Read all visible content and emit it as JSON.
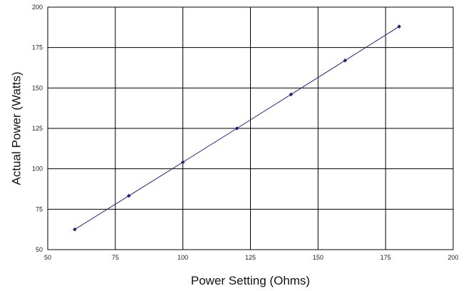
{
  "chart_data": {
    "type": "line",
    "title": "",
    "xlabel": "Power Setting (Ohms)",
    "ylabel": "Actual Power (Watts)",
    "xlim": [
      50,
      200
    ],
    "ylim": [
      50,
      200
    ],
    "x_ticks": [
      50,
      75,
      100,
      125,
      150,
      175,
      200
    ],
    "y_ticks": [
      50,
      75,
      100,
      125,
      150,
      175,
      200
    ],
    "grid": true,
    "legend": "none",
    "series": [
      {
        "color": "#1f1f7a",
        "x": [
          60,
          80,
          100,
          120,
          140,
          160,
          180
        ],
        "y": [
          62.5,
          83.3,
          104.1,
          125,
          146,
          167,
          188
        ]
      }
    ]
  }
}
